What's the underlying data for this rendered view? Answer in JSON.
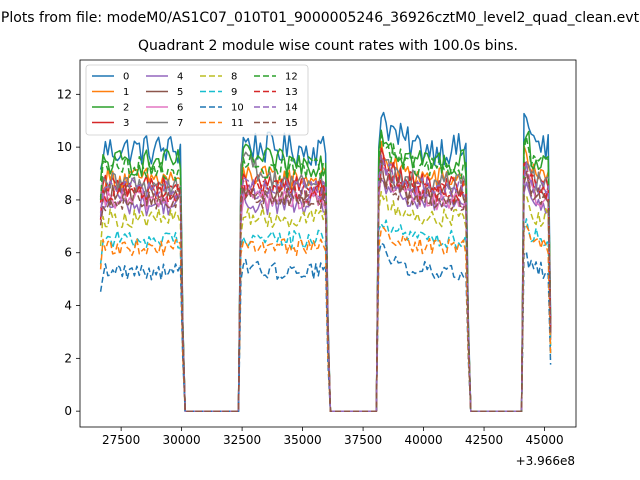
{
  "chart_data": {
    "type": "line",
    "suptitle": "Plots from file: modeM0/AS1C07_010T01_9000005246_36926cztM0_level2_quad_clean.evt",
    "title": "Quadrant 2 module wise count rates with 100.0s bins.",
    "xlabel": "",
    "ylabel": "",
    "x_offset_label": "+3.966e8",
    "x_offset": 396600000,
    "xlim": [
      25800,
      46300
    ],
    "ylim": [
      -0.6,
      13.3
    ],
    "x_ticks": [
      27500,
      30000,
      32500,
      35000,
      37500,
      40000,
      42500,
      45000
    ],
    "x_tick_labels": [
      "27500",
      "30000",
      "32500",
      "35000",
      "37500",
      "40000",
      "42500",
      "45000"
    ],
    "y_ticks": [
      0,
      2,
      4,
      6,
      8,
      10,
      12
    ],
    "y_tick_labels": [
      "0",
      "2",
      "4",
      "6",
      "8",
      "10",
      "12"
    ],
    "grid": false,
    "legend_position": "upper-left",
    "legend_columns": 4,
    "bin_width": 100,
    "segments": [
      {
        "start": 26650,
        "end": 30050
      },
      {
        "start": 32400,
        "end": 36100
      },
      {
        "start": 38150,
        "end": 41900
      },
      {
        "start": 44150,
        "end": 45250
      }
    ],
    "gaps": [
      {
        "start": 30150,
        "end": 32300
      },
      {
        "start": 36200,
        "end": 38050
      },
      {
        "start": 42000,
        "end": 44050
      }
    ],
    "series": [
      {
        "name": "0",
        "color": "#1f77b4",
        "dash": "solid",
        "base": 9.9,
        "amp": 0.25,
        "seg_peak": [
          0,
          0.4,
          1.7,
          2.6
        ]
      },
      {
        "name": "1",
        "color": "#ff7f0e",
        "dash": "solid",
        "base": 8.8,
        "amp": 0.2,
        "seg_peak": [
          0,
          0.3,
          1.3,
          2.0
        ]
      },
      {
        "name": "2",
        "color": "#2ca02c",
        "dash": "solid",
        "base": 9.4,
        "amp": 0.22,
        "seg_peak": [
          0,
          0.3,
          1.6,
          2.1
        ]
      },
      {
        "name": "3",
        "color": "#d62728",
        "dash": "solid",
        "base": 8.5,
        "amp": 0.2,
        "seg_peak": [
          0,
          0.2,
          1.3,
          1.8
        ]
      },
      {
        "name": "4",
        "color": "#9467bd",
        "dash": "solid",
        "base": 7.8,
        "amp": 0.2,
        "seg_peak": [
          0,
          0.2,
          1.2,
          1.7
        ]
      },
      {
        "name": "5",
        "color": "#8c564b",
        "dash": "solid",
        "base": 8.2,
        "amp": 0.2,
        "seg_peak": [
          0,
          0.2,
          1.2,
          1.7
        ]
      },
      {
        "name": "6",
        "color": "#e377c2",
        "dash": "solid",
        "base": 8.0,
        "amp": 0.2,
        "seg_peak": [
          0,
          0.3,
          1.2,
          1.7
        ]
      },
      {
        "name": "7",
        "color": "#7f7f7f",
        "dash": "solid",
        "base": 8.6,
        "amp": 0.2,
        "seg_peak": [
          0,
          1.6,
          1.0,
          1.5
        ]
      },
      {
        "name": "8",
        "color": "#bcbd22",
        "dash": "dashed",
        "base": 7.3,
        "amp": 0.2,
        "seg_peak": [
          0,
          0.2,
          1.1,
          1.6
        ]
      },
      {
        "name": "9",
        "color": "#17becf",
        "dash": "dashed",
        "base": 6.5,
        "amp": 0.22,
        "seg_peak": [
          0,
          0.2,
          1.0,
          1.4
        ]
      },
      {
        "name": "10",
        "color": "#1f77b4",
        "dash": "dashed",
        "base": 5.3,
        "amp": 0.25,
        "seg_peak": [
          0,
          0.3,
          1.1,
          1.3
        ]
      },
      {
        "name": "11",
        "color": "#ff7f0e",
        "dash": "dashed",
        "base": 6.2,
        "amp": 0.2,
        "seg_peak": [
          0,
          0.2,
          1.0,
          1.4
        ]
      },
      {
        "name": "12",
        "color": "#2ca02c",
        "dash": "dashed",
        "base": 9.2,
        "amp": 0.2,
        "seg_peak": [
          0,
          0.3,
          1.4,
          2.0
        ]
      },
      {
        "name": "13",
        "color": "#d62728",
        "dash": "dashed",
        "base": 8.3,
        "amp": 0.2,
        "seg_peak": [
          0,
          0.3,
          1.3,
          1.9
        ]
      },
      {
        "name": "14",
        "color": "#9467bd",
        "dash": "dashed",
        "base": 8.4,
        "amp": 0.2,
        "seg_peak": [
          0,
          0.2,
          1.2,
          1.7
        ]
      },
      {
        "name": "15",
        "color": "#8c564b",
        "dash": "dashed",
        "base": 8.0,
        "amp": 0.2,
        "seg_peak": [
          0,
          0.2,
          1.1,
          1.6
        ]
      }
    ]
  }
}
